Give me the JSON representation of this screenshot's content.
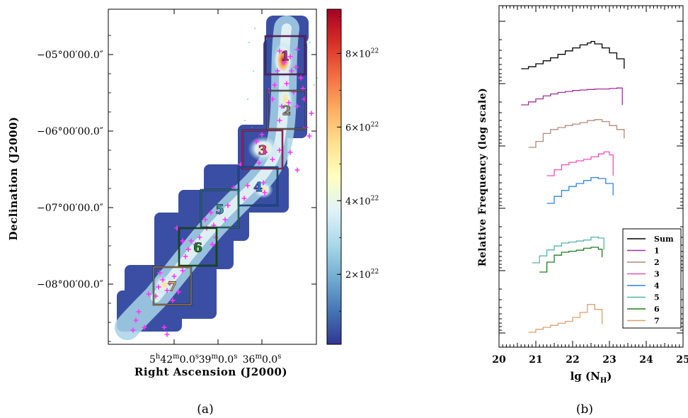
{
  "panel_a": {
    "caption": "(a)",
    "xlabel": "Right Ascension (J2000)",
    "ylabel": "Declination (J2000)",
    "x_ticks": [
      {
        "main": "5",
        "sup1": "h",
        "rest1": "42",
        "sup2": "m",
        "rest2": "0.0",
        "sup3": "s",
        "ra_hours": 5.7
      },
      {
        "main": "39",
        "sup1": "m",
        "rest1": "0.0",
        "sup2": "s",
        "rest2": "",
        "sup3": "",
        "ra_hours": 5.65
      },
      {
        "main": "36",
        "sup1": "m",
        "rest1": "0.0",
        "sup2": "s",
        "rest2": "",
        "sup3": "",
        "ra_hours": 5.6
      }
    ],
    "y_ticks": [
      {
        "label": "−05°00′00.0″",
        "dec": -5.0
      },
      {
        "label": "−06°00′00.0″",
        "dec": -6.0
      },
      {
        "label": "−07°00′00.0″",
        "dec": -7.0
      },
      {
        "label": "−08°00′00.0″",
        "dec": -8.0
      }
    ],
    "colorbar": {
      "ticks": [
        {
          "mant": "8×10",
          "exp": "22",
          "value": 8e+22
        },
        {
          "mant": "6×10",
          "exp": "22",
          "value": 6e+22
        },
        {
          "mant": "4×10",
          "exp": "22",
          "value": 4e+22
        },
        {
          "mant": "2×10",
          "exp": "22",
          "value": 2e+22
        }
      ],
      "colors": [
        "#a50026",
        "#d73027",
        "#f46d43",
        "#fdae61",
        "#fee090",
        "#ffffbf",
        "#e0f3f8",
        "#abd9e9",
        "#74add1",
        "#4575b4",
        "#313695"
      ]
    },
    "regions": [
      {
        "label": "1",
        "color": "#a0309a"
      },
      {
        "label": "2",
        "color": "#9a8a7a"
      },
      {
        "label": "3",
        "color": "#e0409a"
      },
      {
        "label": "4",
        "color": "#2a7ae0"
      },
      {
        "label": "5",
        "color": "#40a0a0"
      },
      {
        "label": "6",
        "color": "#207a20"
      },
      {
        "label": "7",
        "color": "#d4a46a"
      }
    ]
  },
  "panel_b": {
    "caption": "(b)",
    "xlabel_main": "lg (N",
    "xlabel_sub": "H",
    "xlabel_close": ")",
    "ylabel": "Relative Frequency (log scale)",
    "x_ticks": [
      "20",
      "21",
      "22",
      "23",
      "24",
      "25"
    ],
    "legend": [
      {
        "label": "Sum",
        "color": "#000000"
      },
      {
        "label": "1",
        "color": "#a0309a"
      },
      {
        "label": "2",
        "color": "#b48a7a"
      },
      {
        "label": "3",
        "color": "#f050b4"
      },
      {
        "label": "4",
        "color": "#2a84e6"
      },
      {
        "label": "5",
        "color": "#56b4a8"
      },
      {
        "label": "6",
        "color": "#227a22"
      },
      {
        "label": "7",
        "color": "#dca06a"
      }
    ]
  },
  "chart_data": [
    {
      "type": "heatmap",
      "panel": "a",
      "xlabel": "Right Ascension (J2000)",
      "ylabel": "Declination (J2000)",
      "colorbar_ticks": [
        2e+22,
        4e+22,
        6e+22,
        8e+22
      ],
      "region_labels": [
        "1",
        "2",
        "3",
        "4",
        "5",
        "6",
        "7"
      ]
    },
    {
      "type": "line",
      "panel": "b",
      "xlabel": "lg (N_H)",
      "ylabel": "Relative Frequency (log scale)",
      "xlim": [
        20,
        25
      ],
      "x_ticks": [
        20,
        21,
        22,
        23,
        24,
        25
      ],
      "legend_position": "bottom-right",
      "series": [
        {
          "name": "Sum",
          "x": [
            20.6,
            20.8,
            21.0,
            21.2,
            21.4,
            21.6,
            21.8,
            22.0,
            22.2,
            22.4,
            22.5,
            22.6,
            22.8,
            23.0,
            23.2,
            23.4
          ],
          "y": [
            0.0,
            0.04,
            0.1,
            0.16,
            0.22,
            0.29,
            0.36,
            0.42,
            0.48,
            0.52,
            0.55,
            0.5,
            0.42,
            0.32,
            0.2,
            0.0
          ]
        },
        {
          "name": "1",
          "x": [
            20.6,
            20.8,
            21.0,
            21.2,
            21.4,
            21.6,
            21.8,
            22.0,
            22.2,
            22.4,
            22.6,
            22.8,
            23.0,
            23.2,
            23.35
          ],
          "y": [
            0.0,
            0.06,
            0.12,
            0.18,
            0.22,
            0.25,
            0.27,
            0.29,
            0.3,
            0.31,
            0.32,
            0.32,
            0.33,
            0.34,
            0.0
          ]
        },
        {
          "name": "2",
          "x": [
            20.8,
            21.0,
            21.2,
            21.4,
            21.6,
            21.8,
            22.0,
            22.2,
            22.4,
            22.6,
            22.8,
            23.0,
            23.2,
            23.4
          ],
          "y": [
            0.0,
            0.12,
            0.28,
            0.36,
            0.4,
            0.44,
            0.47,
            0.5,
            0.54,
            0.56,
            0.52,
            0.44,
            0.36,
            0.18
          ]
        },
        {
          "name": "3",
          "x": [
            21.3,
            21.5,
            21.7,
            21.9,
            22.1,
            22.3,
            22.5,
            22.7,
            22.85,
            23.0,
            23.1
          ],
          "y": [
            0.0,
            0.12,
            0.22,
            0.27,
            0.3,
            0.33,
            0.38,
            0.44,
            0.48,
            0.42,
            0.0
          ]
        },
        {
          "name": "4",
          "x": [
            21.3,
            21.5,
            21.7,
            21.9,
            22.1,
            22.3,
            22.5,
            22.7,
            22.9,
            23.1
          ],
          "y": [
            0.0,
            0.14,
            0.26,
            0.34,
            0.4,
            0.46,
            0.52,
            0.5,
            0.4,
            0.16
          ]
        },
        {
          "name": "5",
          "x": [
            20.9,
            21.1,
            21.3,
            21.5,
            21.7,
            21.9,
            22.1,
            22.3,
            22.5,
            22.7,
            22.85
          ],
          "y": [
            0.0,
            0.14,
            0.26,
            0.34,
            0.4,
            0.42,
            0.44,
            0.46,
            0.52,
            0.5,
            0.26
          ]
        },
        {
          "name": "6",
          "x": [
            21.1,
            21.3,
            21.5,
            21.7,
            21.9,
            22.1,
            22.3,
            22.5,
            22.7,
            22.8
          ],
          "y": [
            0.0,
            0.2,
            0.34,
            0.4,
            0.42,
            0.44,
            0.48,
            0.5,
            0.46,
            0.3
          ]
        },
        {
          "name": "7",
          "x": [
            20.8,
            21.0,
            21.2,
            21.4,
            21.6,
            21.8,
            22.0,
            22.2,
            22.4,
            22.6,
            22.8
          ],
          "y": [
            0.0,
            0.06,
            0.1,
            0.14,
            0.18,
            0.22,
            0.3,
            0.4,
            0.56,
            0.46,
            0.16
          ]
        }
      ]
    }
  ]
}
